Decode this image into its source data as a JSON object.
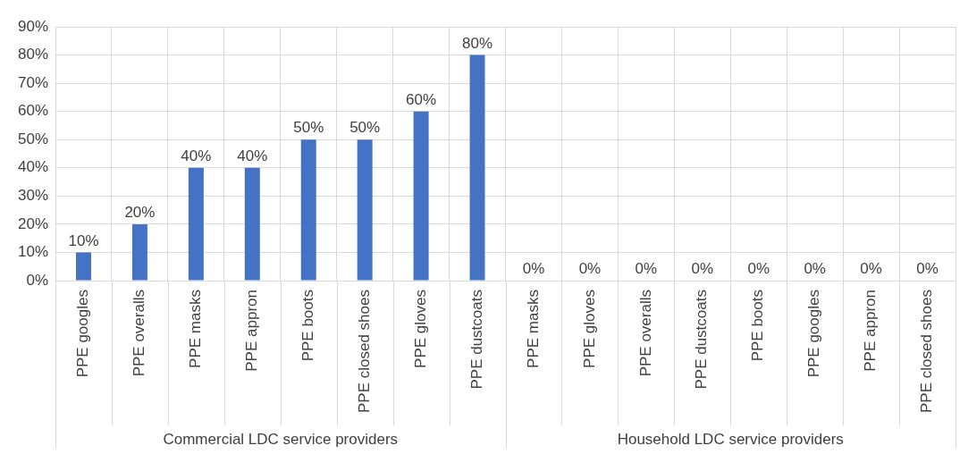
{
  "chart_data": {
    "type": "bar",
    "categories": [
      "PPE googles",
      "PPE overalls",
      "PPE masks",
      "PPE appron",
      "PPE boots",
      "PPE closed shoes",
      "PPE gloves",
      "PPE dustcoats",
      "PPE masks",
      "PPE gloves",
      "PPE overalls",
      "PPE dustcoats",
      "PPE boots",
      "PPE googles",
      "PPE appron",
      "PPE closed shoes"
    ],
    "values": [
      10,
      20,
      40,
      40,
      50,
      50,
      60,
      80,
      0,
      0,
      0,
      0,
      0,
      0,
      0,
      0
    ],
    "value_labels": [
      "10%",
      "20%",
      "40%",
      "40%",
      "50%",
      "50%",
      "60%",
      "80%",
      "0%",
      "0%",
      "0%",
      "0%",
      "0%",
      "0%",
      "0%",
      "0%"
    ],
    "color": "#4472c4",
    "ylim": [
      0,
      90
    ],
    "yticks": [
      {
        "value": 0,
        "label": "0%"
      },
      {
        "value": 10,
        "label": "10%"
      },
      {
        "value": 20,
        "label": "20%"
      },
      {
        "value": 30,
        "label": "30%"
      },
      {
        "value": 40,
        "label": "40%"
      },
      {
        "value": 50,
        "label": "50%"
      },
      {
        "value": 60,
        "label": "60%"
      },
      {
        "value": 70,
        "label": "70%"
      },
      {
        "value": 80,
        "label": "80%"
      },
      {
        "value": 90,
        "label": "90%"
      }
    ],
    "grid": true,
    "annotations": [
      "Commercial LDC service providers",
      "Household LDC service providers"
    ]
  }
}
